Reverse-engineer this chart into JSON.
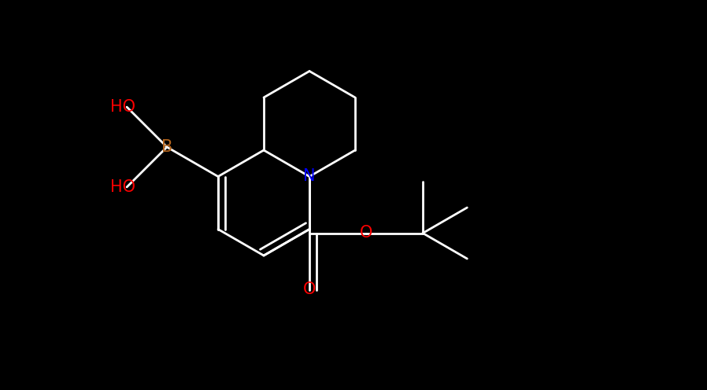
{
  "background_color": "#000000",
  "bond_color": "#ffffff",
  "bond_width": 2.0,
  "atom_colors": {
    "B": "#b5651d",
    "N": "#0000ff",
    "O": "#ff0000",
    "C": "#ffffff"
  },
  "font_size_atoms": 16,
  "font_size_labels": 14
}
